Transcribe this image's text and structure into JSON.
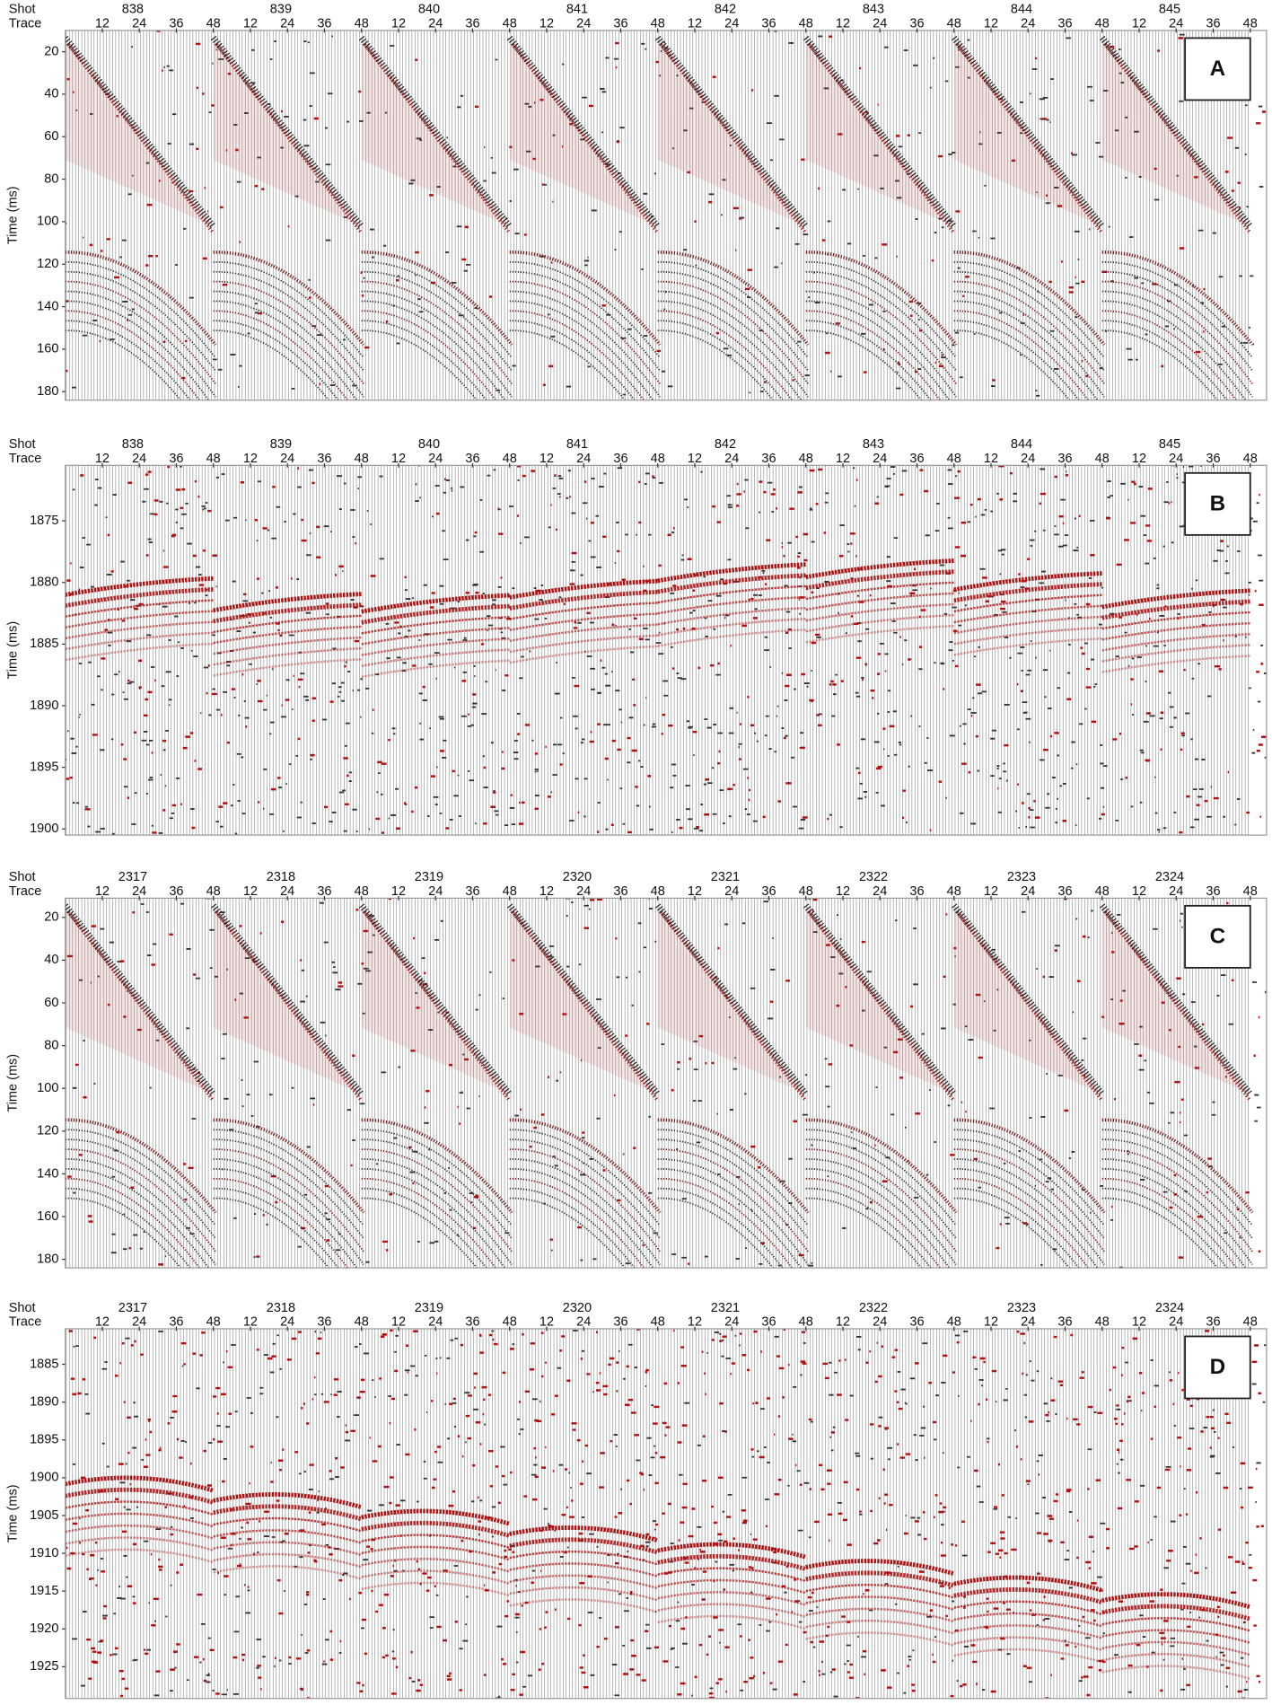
{
  "panels": [
    {
      "label": "A",
      "shot_header": "Shot",
      "trace_header": "Trace",
      "y_axis_label": "Time (ms)",
      "shots": [
        "838",
        "839",
        "840",
        "841",
        "842",
        "843",
        "844",
        "845"
      ],
      "trace_ticks": [
        12,
        24,
        36,
        48
      ],
      "ylim": [
        10,
        184
      ],
      "yticks": [
        20,
        40,
        60,
        80,
        100,
        120,
        140,
        160,
        180
      ]
    },
    {
      "label": "B",
      "shot_header": "Shot",
      "trace_header": "Trace",
      "y_axis_label": "Time (ms)",
      "shots": [
        "838",
        "839",
        "840",
        "841",
        "842",
        "843",
        "844",
        "845"
      ],
      "trace_ticks": [
        12,
        24,
        36,
        48
      ],
      "ylim": [
        1870.5,
        1900.5
      ],
      "yticks": [
        1875,
        1880,
        1885,
        1890,
        1895,
        1900
      ]
    },
    {
      "label": "C",
      "shot_header": "Shot",
      "trace_header": "Trace",
      "y_axis_label": "Time (ms)",
      "shots": [
        "2317",
        "2318",
        "2319",
        "2320",
        "2321",
        "2322",
        "2323",
        "2324"
      ],
      "trace_ticks": [
        12,
        24,
        36,
        48
      ],
      "ylim": [
        11,
        184
      ],
      "yticks": [
        20,
        40,
        60,
        80,
        100,
        120,
        140,
        160,
        180
      ]
    },
    {
      "label": "D",
      "shot_header": "Shot",
      "trace_header": "Trace",
      "y_axis_label": "Time (ms)",
      "shots": [
        "2317",
        "2318",
        "2319",
        "2320",
        "2321",
        "2322",
        "2323",
        "2324"
      ],
      "trace_ticks": [
        12,
        24,
        36,
        48
      ],
      "ylim": [
        1880.3,
        1929.2
      ],
      "yticks": [
        1885,
        1890,
        1895,
        1900,
        1905,
        1910,
        1915,
        1920,
        1925
      ]
    }
  ]
}
